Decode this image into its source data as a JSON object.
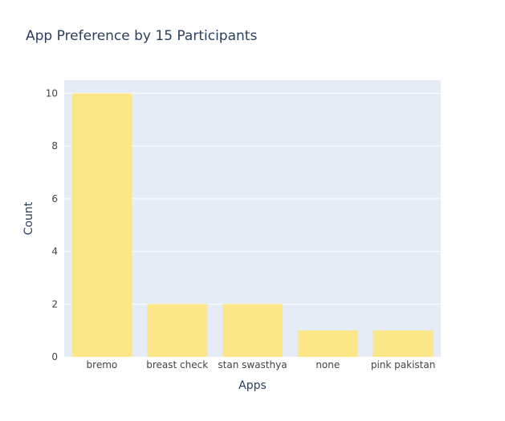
{
  "chart_data": {
    "type": "bar",
    "title": "App Preference by 15 Participants",
    "xlabel": "Apps",
    "ylabel": "Count",
    "categories": [
      "bremo",
      "breast check",
      "stan swasthya",
      "none",
      "pink pakistan"
    ],
    "values": [
      10,
      2,
      2,
      1,
      1
    ],
    "ylim": [
      0,
      10.5
    ],
    "yticks": [
      0,
      2,
      4,
      6,
      8,
      10
    ],
    "grid": true,
    "legend": "none",
    "colors": {
      "bar": "#fce788",
      "plot_bg": "#e5ecf6",
      "grid": "#ffffff",
      "text": "#2a3f5f",
      "tick_text": "#444444"
    }
  }
}
